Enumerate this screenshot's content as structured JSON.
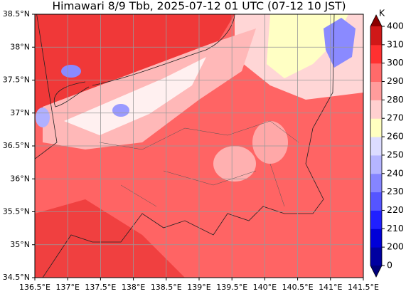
{
  "map": {
    "title": "Himawari 8/9 Tbb, 2025-07-12 01 UTC (07-12 10 JST)",
    "lon_lim": [
      136.5,
      141.5
    ],
    "lat_lim": [
      34.5,
      38.5
    ],
    "lon_ticks": [
      {
        "value": 136.5,
        "label": "136.5°E"
      },
      {
        "value": 137,
        "label": "137°E"
      },
      {
        "value": 137.5,
        "label": "137.5°E"
      },
      {
        "value": 138,
        "label": "138°E"
      },
      {
        "value": 138.5,
        "label": "138.5°E"
      },
      {
        "value": 139,
        "label": "139°E"
      },
      {
        "value": 139.5,
        "label": "139.5°E"
      },
      {
        "value": 140,
        "label": "140°E"
      },
      {
        "value": 140.5,
        "label": "140.5°E"
      },
      {
        "value": 141,
        "label": "141°E"
      },
      {
        "value": 141.5,
        "label": "141.5°E"
      }
    ],
    "lat_ticks": [
      {
        "value": 34.5,
        "label": "34.5°N"
      },
      {
        "value": 35,
        "label": "35°N"
      },
      {
        "value": 35.5,
        "label": "35.5°N"
      },
      {
        "value": 36,
        "label": "36°N"
      },
      {
        "value": 36.5,
        "label": "36.5°N"
      },
      {
        "value": 37,
        "label": "37°N"
      },
      {
        "value": 37.5,
        "label": "37.5°N"
      },
      {
        "value": 38,
        "label": "38°N"
      },
      {
        "value": 38.5,
        "label": "38.5°N"
      }
    ],
    "grid": true,
    "colorbar": {
      "unit": "K",
      "levels": [
        0,
        200,
        210,
        220,
        230,
        240,
        250,
        260,
        270,
        280,
        290,
        300,
        310,
        400
      ],
      "colors": [
        "#0000a0",
        "#0000d8",
        "#2020ff",
        "#5555ff",
        "#8585ff",
        "#b5b5ff",
        "#dcdcff",
        "#ffffc0",
        "#ffd0d0",
        "#ff9c9c",
        "#ff6a6a",
        "#ff3030",
        "#d01818"
      ],
      "under_color": "#00007a",
      "over_color": "#8b0000"
    }
  }
}
